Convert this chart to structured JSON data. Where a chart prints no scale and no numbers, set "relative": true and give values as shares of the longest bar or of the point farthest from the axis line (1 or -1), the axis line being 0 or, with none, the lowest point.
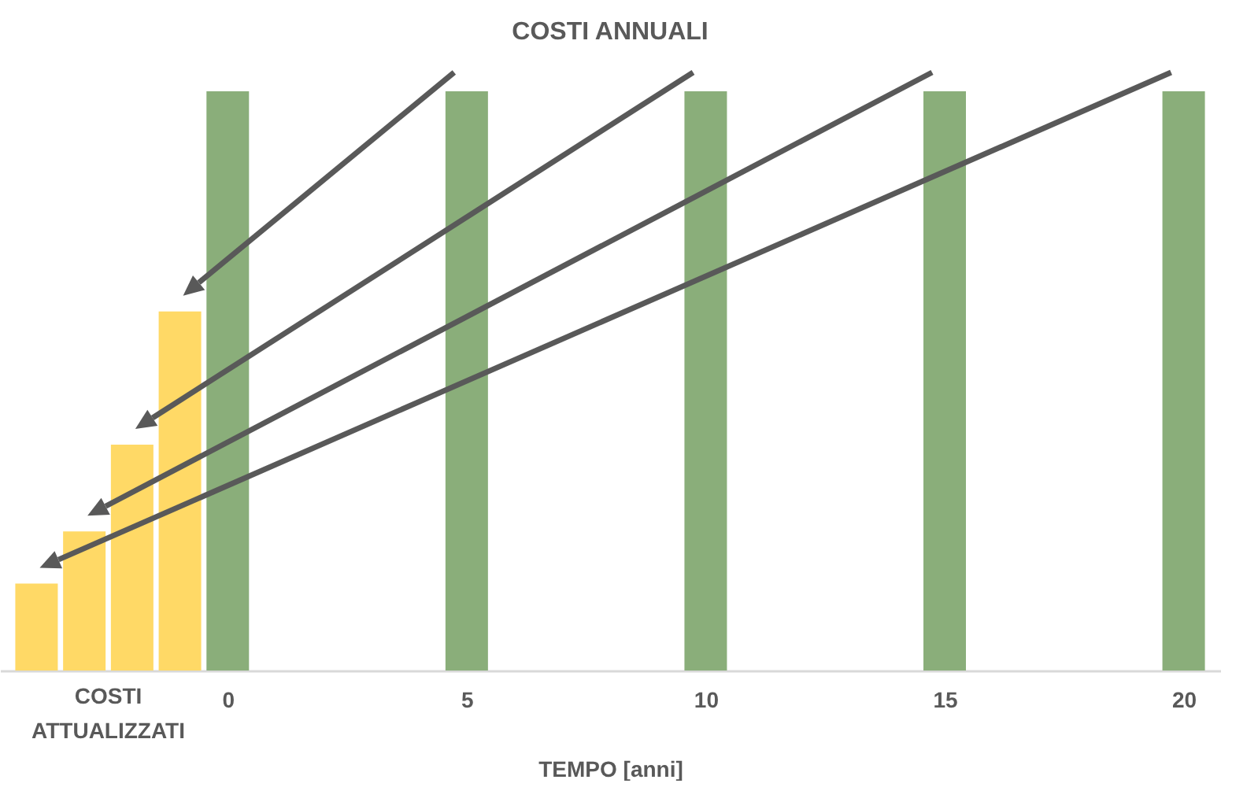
{
  "chart_data": {
    "type": "bar",
    "title": "COSTI ANNUALI",
    "xlabel": "TEMPO [anni]",
    "relative": true,
    "xlim": [
      -4.6,
      20.6
    ],
    "xticks": [
      0,
      5,
      10,
      15,
      20
    ],
    "annotations": [
      "COSTI ATTUALIZZATI"
    ],
    "series": [
      {
        "color": "#ffd966",
        "x": [
          -4,
          -3,
          -2,
          -1
        ],
        "values": [
          0.15,
          0.24,
          0.39,
          0.62
        ]
      },
      {
        "color": "#8aae7a",
        "x": [
          0,
          5,
          10,
          15,
          20
        ],
        "values": [
          1,
          1,
          1,
          1,
          1
        ]
      }
    ]
  }
}
